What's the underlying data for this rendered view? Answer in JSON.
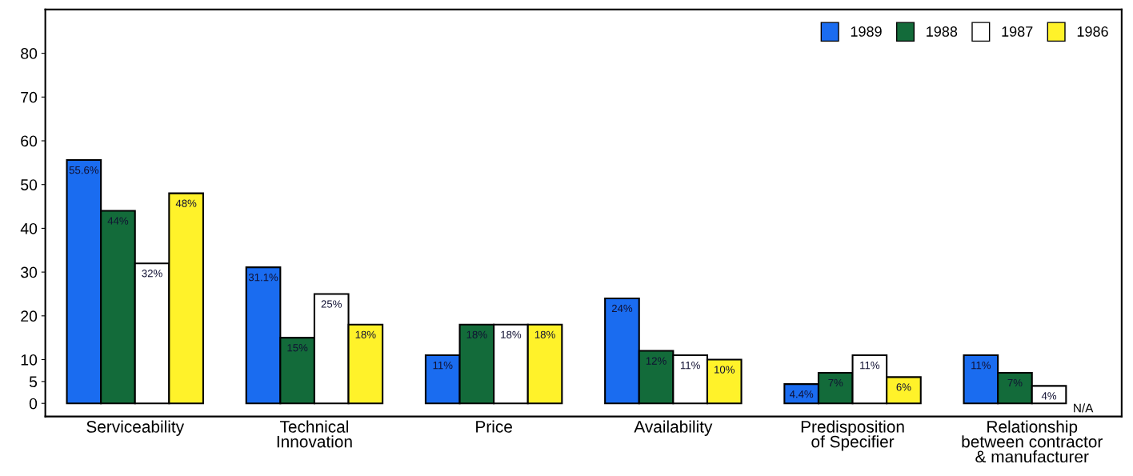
{
  "chart_data": {
    "type": "bar",
    "categories": [
      "Serviceability",
      "Technical\nInnovation",
      "Price",
      "Availability",
      "Predisposition\nof Specifier",
      "Relationship\nbetween contractor\n& manufacturer"
    ],
    "series": [
      {
        "name": "1989",
        "color": "#1a6cf0",
        "values": [
          55.6,
          31.1,
          11,
          24,
          4.4,
          11
        ],
        "value_labels": [
          "55.6%",
          "31.1%",
          "11%",
          "24%",
          "4.4%",
          "11%"
        ]
      },
      {
        "name": "1988",
        "color": "#136b3a",
        "values": [
          44,
          15,
          18,
          12,
          7,
          7
        ],
        "value_labels": [
          "44%",
          "15%",
          "18%",
          "12%",
          "7%",
          "7%"
        ]
      },
      {
        "name": "1987",
        "color": "#ffffff",
        "values": [
          32,
          25,
          18,
          11,
          11,
          4
        ],
        "value_labels": [
          "32%",
          "25%",
          "18%",
          "11%",
          "11%",
          "4%"
        ]
      },
      {
        "name": "1986",
        "color": "#fff22a",
        "values": [
          48,
          18,
          18,
          10,
          6,
          null
        ],
        "value_labels": [
          "48%",
          "18%",
          "18%",
          "10%",
          "6%",
          "N/A"
        ]
      }
    ],
    "ylim": [
      -3,
      90
    ],
    "yticks": [
      0,
      5,
      10,
      20,
      30,
      40,
      50,
      60,
      70,
      80
    ],
    "grid": false,
    "legend": "top right"
  }
}
